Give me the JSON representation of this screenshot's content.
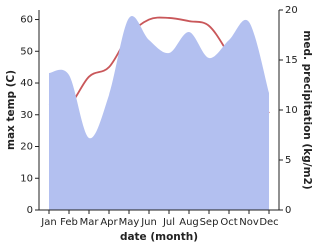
{
  "chart_data": {
    "type": "line_area",
    "categories": [
      "Jan",
      "Feb",
      "Mar",
      "Apr",
      "May",
      "Jun",
      "Jul",
      "Aug",
      "Sep",
      "Oct",
      "Nov",
      "Dec"
    ],
    "x_label": "date (month)",
    "y_label": "max temp (C)",
    "y2_label": "med. precipitation (kg/m2)",
    "series": [
      {
        "name": "max temp",
        "type": "line",
        "color": "#c9575a",
        "values": [
          33.5,
          33,
          42,
          45,
          55,
          60,
          60.5,
          59.5,
          58,
          49,
          39,
          30.5
        ]
      },
      {
        "name": "med. precipitation",
        "type": "area",
        "axis": "y2",
        "color": "#b3c0f0",
        "values": [
          13.7,
          13.5,
          7.2,
          11.5,
          19.2,
          17,
          15.7,
          17.8,
          15.2,
          17,
          18.8,
          11.7
        ]
      }
    ],
    "ylim": [
      0,
      63
    ],
    "yticks": [
      0,
      10,
      20,
      30,
      40,
      50,
      60
    ],
    "y2lim": [
      0,
      20
    ],
    "y2ticks": [
      0,
      5,
      10,
      15,
      20
    ]
  }
}
